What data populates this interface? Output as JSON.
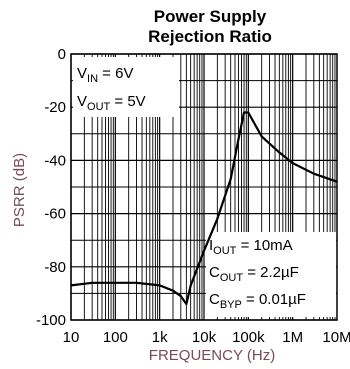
{
  "chart_data": {
    "type": "line",
    "title_lines": [
      "Power Supply",
      "Rejection Ratio"
    ],
    "xlabel": "FREQUENCY (Hz)",
    "ylabel": "PSRR (dB)",
    "x_scale": "log",
    "xlim": [
      10,
      10000000
    ],
    "ylim": [
      -100,
      0
    ],
    "grid": true,
    "x_ticks": [
      {
        "value": 10,
        "label": "10"
      },
      {
        "value": 100,
        "label": "100"
      },
      {
        "value": 1000,
        "label": "1k"
      },
      {
        "value": 10000,
        "label": "10k"
      },
      {
        "value": 100000,
        "label": "100k"
      },
      {
        "value": 1000000,
        "label": "1M"
      },
      {
        "value": 10000000,
        "label": "10M"
      }
    ],
    "y_ticks": [
      {
        "value": 0,
        "label": "0"
      },
      {
        "value": -20,
        "label": "-20"
      },
      {
        "value": -40,
        "label": "-40"
      },
      {
        "value": -60,
        "label": "-60"
      },
      {
        "value": -80,
        "label": "-80"
      },
      {
        "value": -100,
        "label": "-100"
      }
    ],
    "series": [
      {
        "x": [
          10,
          30,
          100,
          300,
          1000,
          2000,
          3000,
          4000,
          5000,
          10000,
          20000,
          40000,
          60000,
          80000,
          100000,
          200000,
          500000,
          1000000,
          3000000,
          10000000
        ],
        "y": [
          -87,
          -86,
          -86,
          -86,
          -87,
          -89,
          -91,
          -94,
          -87,
          -74,
          -62,
          -47,
          -32,
          -22,
          -22,
          -31,
          -37,
          -41,
          -45,
          -48
        ]
      }
    ],
    "annotations_top_left": {
      "vin": {
        "main": "V",
        "sub": "IN",
        "rest": " = 6V"
      },
      "vout": {
        "main": "V",
        "sub": "OUT",
        "rest": " = 5V"
      }
    },
    "annotations_bottom_right": {
      "iout": {
        "main": "I",
        "sub": "OUT",
        "rest": " = 10mA"
      },
      "cout": {
        "main": "C",
        "sub": "OUT",
        "rest": " = 2.2µF"
      },
      "cbyp": {
        "main": "C",
        "sub": "BYP",
        "rest": " = 0.01µF"
      }
    }
  }
}
